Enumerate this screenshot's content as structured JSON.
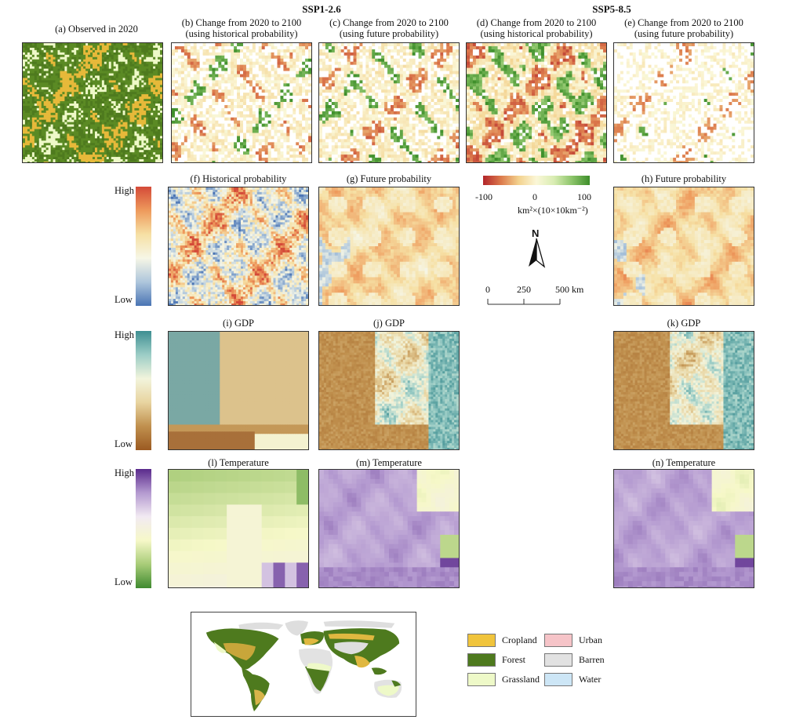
{
  "headers": {
    "ssp1": "SSP1-2.6",
    "ssp5": "SSP5-8.5"
  },
  "panels": {
    "a": "(a) Observed in 2020",
    "b": [
      "(b) Change from 2020 to 2100",
      "(using historical probability)"
    ],
    "c": [
      "(c) Change from 2020 to 2100",
      "(using future probability)"
    ],
    "d": [
      "(d) Change from 2020 to 2100",
      "(using historical probability)"
    ],
    "e": [
      "(e) Change from 2020 to 2100",
      "(using future probability)"
    ],
    "f": "(f) Historical probability",
    "g": "(g) Future probability",
    "h": "(h) Future probability",
    "i": "(i) GDP",
    "j": "(j) GDP",
    "k": "(k) GDP",
    "l": "(l) Temperature",
    "m": "(m) Temperature",
    "n": "(n) Temperature"
  },
  "colorbars": {
    "probability": {
      "high": "High",
      "low": "Low"
    },
    "gdp": {
      "high": "High",
      "low": "Low"
    },
    "temperature": {
      "high": "High",
      "low": "Low"
    }
  },
  "change_scale": {
    "min": "-100",
    "mid": "0",
    "max": "100",
    "unit": "km²×(10×10km⁻²)"
  },
  "north": "N",
  "scalebar": {
    "t0": "0",
    "t1": "250",
    "t2": "500 km"
  },
  "legend": {
    "items": [
      {
        "label": "Cropland",
        "color": "#f0c43c"
      },
      {
        "label": "Forest",
        "color": "#4e7a1e"
      },
      {
        "label": "Grassland",
        "color": "#eef9c8"
      },
      {
        "label": "Urban",
        "color": "#f6c4c8"
      },
      {
        "label": "Barren",
        "color": "#e2e2e2"
      },
      {
        "label": "Water",
        "color": "#cde6f6"
      }
    ]
  },
  "colors": {
    "change_neg": "#b2242a",
    "change_pos": "#4d9a2a",
    "prob_high": "#d94c3c",
    "prob_low": "#4a74b4",
    "gdp_high": "#3e8f92",
    "gdp_low": "#9b5a22",
    "temp_high": "#5a2a8c",
    "temp_low": "#3f8a30"
  }
}
